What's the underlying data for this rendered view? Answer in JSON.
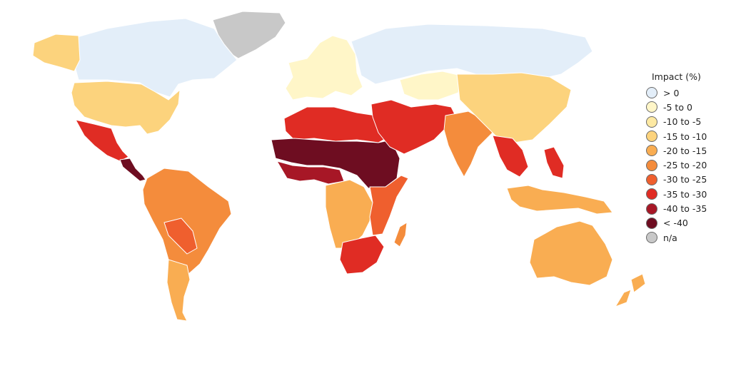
{
  "legend": {
    "title": "Impact (%)",
    "items": [
      {
        "label": "> 0",
        "color": "#e3eef9"
      },
      {
        "label": "-5 to 0",
        "color": "#fff6c8"
      },
      {
        "label": "-10 to -5",
        "color": "#fde9a3"
      },
      {
        "label": "-15 to -10",
        "color": "#fcd37d"
      },
      {
        "label": "-20 to -15",
        "color": "#f9ad52"
      },
      {
        "label": "-25 to -20",
        "color": "#f48c3c"
      },
      {
        "label": "-30 to -25",
        "color": "#ef5f2e"
      },
      {
        "label": "-35 to -30",
        "color": "#e02c24"
      },
      {
        "label": "-40 to -35",
        "color": "#a71726"
      },
      {
        "label": "< -40",
        "color": "#6e0d21"
      },
      {
        "label": "n/a",
        "color": "#c8c8c8"
      }
    ]
  },
  "regions": [
    {
      "name": "greenland",
      "category": "n/a"
    },
    {
      "name": "canada",
      "category": "> 0"
    },
    {
      "name": "alaska",
      "category": "-15 to -10"
    },
    {
      "name": "usa",
      "category": "-15 to -10"
    },
    {
      "name": "mexico",
      "category": "-35 to -30"
    },
    {
      "name": "central-america",
      "category": "< -40"
    },
    {
      "name": "south-america",
      "category": "-25 to -20"
    },
    {
      "name": "bolivia-paraguay",
      "category": "-30 to -25"
    },
    {
      "name": "southern-cone",
      "category": "-20 to -15"
    },
    {
      "name": "europe",
      "category": "-5 to 0"
    },
    {
      "name": "russia",
      "category": "> 0"
    },
    {
      "name": "north-africa",
      "category": "-35 to -30"
    },
    {
      "name": "sahel",
      "category": "< -40"
    },
    {
      "name": "west-africa",
      "category": "-40 to -35"
    },
    {
      "name": "central-southern-africa",
      "category": "-20 to -15"
    },
    {
      "name": "east-africa",
      "category": "-30 to -25"
    },
    {
      "name": "southern-africa",
      "category": "-35 to -30"
    },
    {
      "name": "madagascar",
      "category": "-25 to -20"
    },
    {
      "name": "middle-east",
      "category": "-35 to -30"
    },
    {
      "name": "central-asia",
      "category": "-5 to 0"
    },
    {
      "name": "india",
      "category": "-25 to -20"
    },
    {
      "name": "china",
      "category": "-15 to -10"
    },
    {
      "name": "southeast-asia",
      "category": "-35 to -30"
    },
    {
      "name": "indonesia",
      "category": "-20 to -15"
    },
    {
      "name": "australia",
      "category": "-20 to -15"
    },
    {
      "name": "new-zealand",
      "category": "-20 to -15"
    }
  ]
}
